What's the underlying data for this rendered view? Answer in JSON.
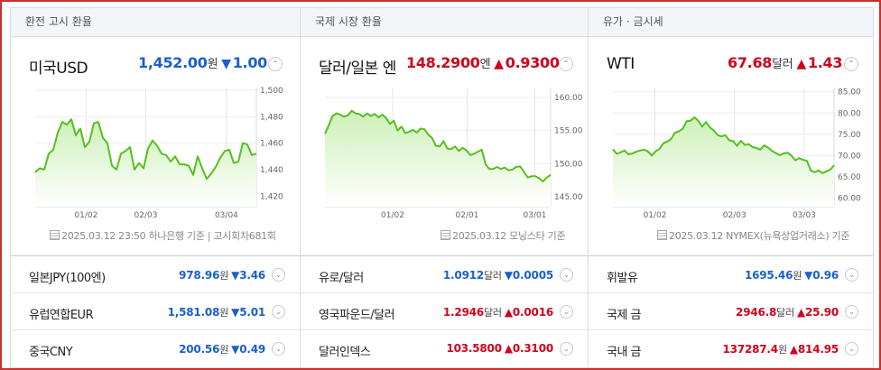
{
  "columns": [
    {
      "header": "환전 고시 환율",
      "name": "미국USD",
      "value": "1,452.00",
      "unit": "원",
      "direction": "down",
      "arrow": "▼",
      "change": "1.00",
      "source": "2025.03.12 23:50 하나은행 기준 | 고시회차681회",
      "rows": [
        {
          "name": "일본JPY(100엔)",
          "value": "978.96",
          "unit": "원",
          "direction": "down",
          "arrow": "▼",
          "change": "3.46"
        },
        {
          "name": "유럽연합EUR",
          "value": "1,581.08",
          "unit": "원",
          "direction": "down",
          "arrow": "▼",
          "change": "5.01"
        },
        {
          "name": "중국CNY",
          "value": "200.56",
          "unit": "원",
          "direction": "down",
          "arrow": "▼",
          "change": "0.49"
        }
      ]
    },
    {
      "header": "국제 시장 환율",
      "name": "달러/일본 엔",
      "value": "148.2900",
      "unit": "엔",
      "direction": "up",
      "arrow": "▲",
      "change": "0.9300",
      "source": "2025.03.12 모닝스타 기준",
      "rows": [
        {
          "name": "유로/달러",
          "value": "1.0912",
          "unit": "달러",
          "direction": "down",
          "arrow": "▼",
          "change": "0.0005"
        },
        {
          "name": "영국파운드/달러",
          "value": "1.2946",
          "unit": "달러",
          "direction": "up",
          "arrow": "▲",
          "change": "0.0016"
        },
        {
          "name": "달러인덱스",
          "value": "103.5800",
          "unit": "",
          "direction": "up",
          "arrow": "▲",
          "change": "0.3100"
        }
      ]
    },
    {
      "header": "유가 · 금시세",
      "name": "WTI",
      "value": "67.68",
      "unit": "달러",
      "direction": "up",
      "arrow": "▲",
      "change": "1.43",
      "source": "2025.03.12 NYMEX(뉴욕상업거래소) 기준",
      "rows": [
        {
          "name": "휘발유",
          "value": "1695.46",
          "unit": "원",
          "direction": "down",
          "arrow": "▼",
          "change": "0.96"
        },
        {
          "name": "국제 금",
          "value": "2946.8",
          "unit": "달러",
          "direction": "up",
          "arrow": "▲",
          "change": "25.90"
        },
        {
          "name": "국내 금",
          "value": "137287.4",
          "unit": "원",
          "direction": "up",
          "arrow": "▲",
          "change": "814.95"
        }
      ]
    }
  ],
  "colors": {
    "up": "#d0021b",
    "down": "#1b5fcc",
    "line": "#55c01f",
    "fill_top": "#cdf0b8",
    "fill_bottom": "#ffffff"
  },
  "icons": {
    "expand": "chevron-up-icon",
    "row": "chevron-down-icon",
    "source": "document-icon"
  },
  "chart_data": [
    {
      "type": "area",
      "x_ticks": [
        "01/02",
        "02/03",
        "03/04"
      ],
      "y_ticks": [
        1420,
        1440,
        1460,
        1480,
        1500
      ],
      "ylim": [
        1412,
        1502
      ],
      "values": [
        1438,
        1441,
        1440,
        1452,
        1455,
        1468,
        1476,
        1474,
        1478,
        1466,
        1471,
        1457,
        1461,
        1475,
        1476,
        1464,
        1460,
        1443,
        1440,
        1452,
        1454,
        1457,
        1440,
        1445,
        1441,
        1456,
        1462,
        1458,
        1452,
        1451,
        1446,
        1450,
        1444,
        1444,
        1443,
        1436,
        1450,
        1441,
        1433,
        1437,
        1442,
        1449,
        1454,
        1455,
        1445,
        1446,
        1460,
        1459,
        1451,
        1452
      ]
    },
    {
      "type": "area",
      "x_ticks": [
        "01/02",
        "02/01",
        "03/01"
      ],
      "y_ticks": [
        145.0,
        150.0,
        155.0,
        160.0
      ],
      "ylim": [
        143.5,
        161.5
      ],
      "values": [
        154.5,
        155.8,
        157.2,
        157.6,
        157.4,
        157.1,
        157.3,
        158.0,
        157.6,
        157.5,
        157.1,
        157.6,
        157.2,
        157.5,
        157.0,
        157.4,
        156.9,
        156.0,
        156.5,
        155.0,
        155.6,
        154.6,
        154.8,
        155.1,
        154.7,
        155.3,
        155.2,
        154.4,
        153.9,
        152.7,
        152.6,
        153.4,
        152.3,
        152.2,
        152.6,
        151.9,
        152.4,
        152.0,
        151.3,
        151.5,
        151.8,
        152.1,
        149.9,
        149.2,
        149.2,
        149.5,
        149.2,
        149.4,
        149.0,
        149.1,
        149.5,
        149.6,
        148.8,
        147.9,
        148.1,
        148.1,
        147.8,
        147.3,
        147.9,
        148.3
      ]
    },
    {
      "type": "area",
      "x_ticks": [
        "01/02",
        "02/03",
        "03/03"
      ],
      "y_ticks": [
        60.0,
        65.0,
        70.0,
        75.0,
        80.0,
        85.0
      ],
      "ylim": [
        58.0,
        86.0
      ],
      "values": [
        71.5,
        70.4,
        70.8,
        71.2,
        70.3,
        70.5,
        70.9,
        71.2,
        71.4,
        71.0,
        70.0,
        71.0,
        71.6,
        72.9,
        73.3,
        73.9,
        75.4,
        75.7,
        76.3,
        78.1,
        78.2,
        79.0,
        78.2,
        76.8,
        77.9,
        76.6,
        75.9,
        74.8,
        74.5,
        74.8,
        73.6,
        73.4,
        72.3,
        73.5,
        72.5,
        72.7,
        72.0,
        71.8,
        71.4,
        72.4,
        71.9,
        71.1,
        70.6,
        70.1,
        70.5,
        70.7,
        70.0,
        68.9,
        69.4,
        69.0,
        68.8,
        66.5,
        66.1,
        66.5,
        65.9,
        66.3,
        66.7,
        67.7
      ]
    }
  ]
}
